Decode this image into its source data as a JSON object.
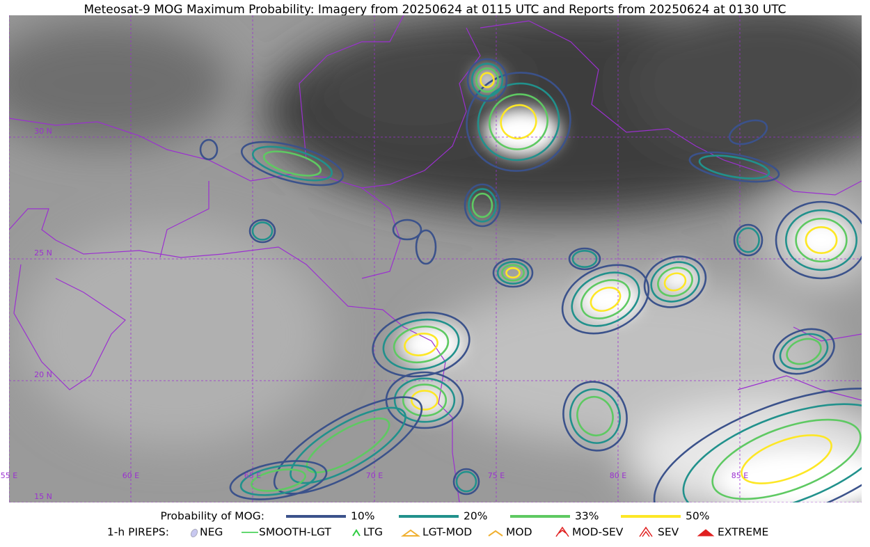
{
  "title": "Meteosat-9 MOG Maximum Probability: Imagery from 20250624 at 0115 UTC and Reports from 20250624 at 0130 UTC",
  "map": {
    "lat_labels": [
      "30 N",
      "25 N",
      "20 N",
      "15 N"
    ],
    "lon_labels": [
      "55 E",
      "60 E",
      "65 E",
      "70 E",
      "75 E",
      "80 E",
      "85 E"
    ]
  },
  "legend": {
    "probability": {
      "label": "Probability of MOG:",
      "items": [
        "10%",
        "20%",
        "33%",
        "50%"
      ]
    },
    "pireps": {
      "label": "1-h PIREPS:",
      "items": [
        "NEG",
        "SMOOTH-LGT",
        "LTG",
        "LGT-MOD",
        "MOD",
        "MOD-SEV",
        "SEV",
        "EXTREME"
      ]
    }
  }
}
